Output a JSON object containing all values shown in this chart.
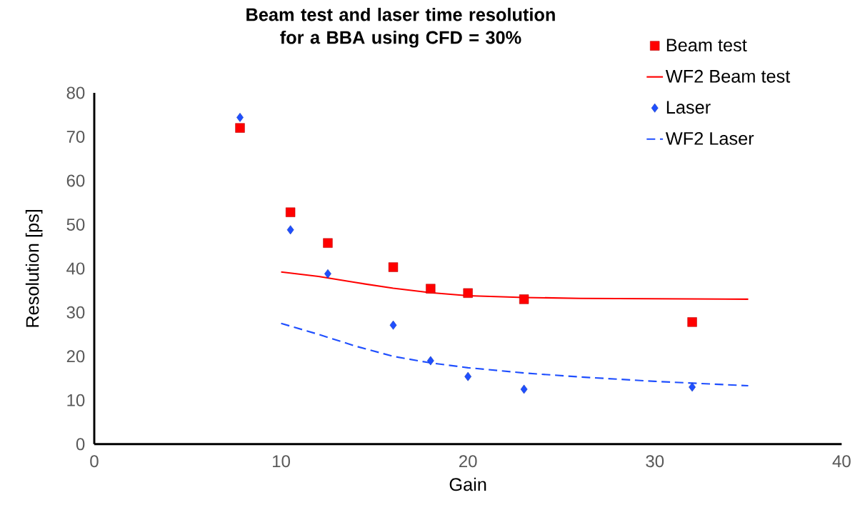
{
  "chart_data": {
    "type": "scatter",
    "title": "Beam test and laser time resolution for a BBA using CFD = 30%",
    "xlabel": "Gain",
    "ylabel": "Resolution [ps]",
    "xlim": [
      0,
      40
    ],
    "xticks": [
      0,
      10,
      20,
      30,
      40
    ],
    "ylim": [
      0,
      80
    ],
    "yticks": [
      0,
      10,
      20,
      30,
      40,
      50,
      60,
      70,
      80
    ],
    "grid": false,
    "legend": "top right",
    "series": [
      {
        "name": "Beam test",
        "marker": "square",
        "color": "#ff0000",
        "x": [
          7.8,
          10.5,
          12.5,
          16,
          18,
          20,
          23,
          32
        ],
        "values": [
          72,
          52.8,
          45.8,
          40.3,
          35.4,
          34.4,
          33,
          27.8
        ]
      },
      {
        "name": "WF2 Beam test",
        "type": "line",
        "marker": "none",
        "line_style": "solid",
        "color": "#ff0000",
        "x": [
          10,
          12,
          14,
          16,
          18,
          20,
          23,
          26,
          30,
          35
        ],
        "values": [
          39.2,
          38.2,
          36.8,
          35.5,
          34.5,
          33.8,
          33.4,
          33.2,
          33.1,
          33.0
        ]
      },
      {
        "name": "Laser",
        "marker": "diamond",
        "color": "#1f4fff",
        "x": [
          7.8,
          10.5,
          12.5,
          16,
          18,
          20,
          23,
          32
        ],
        "values": [
          74.4,
          48.8,
          38.8,
          27.1,
          19,
          15.4,
          12.5,
          13
        ]
      },
      {
        "name": "WF2 Laser",
        "type": "line",
        "marker": "none",
        "line_style": "dashed",
        "color": "#1f4fff",
        "x": [
          10,
          12,
          14,
          16,
          18,
          20,
          23,
          26,
          30,
          35
        ],
        "values": [
          27.5,
          25,
          22.3,
          20,
          18.5,
          17.4,
          16.2,
          15.3,
          14.3,
          13.3
        ]
      }
    ]
  }
}
